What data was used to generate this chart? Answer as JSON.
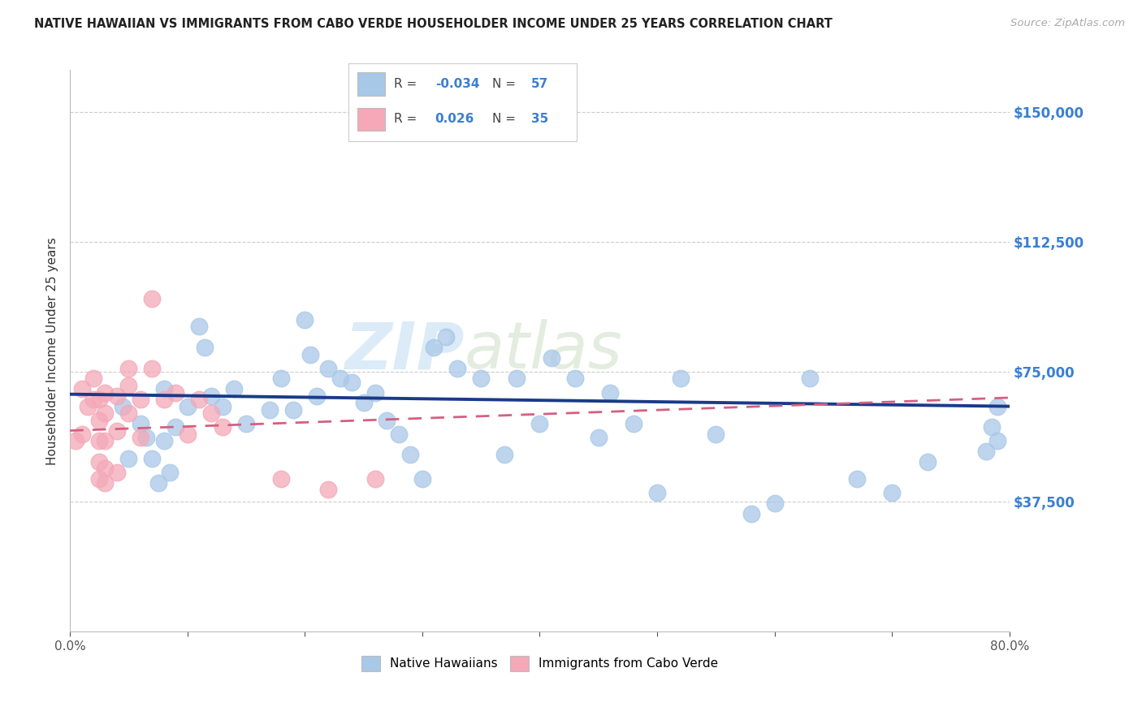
{
  "title": "NATIVE HAWAIIAN VS IMMIGRANTS FROM CABO VERDE HOUSEHOLDER INCOME UNDER 25 YEARS CORRELATION CHART",
  "source": "Source: ZipAtlas.com",
  "ylabel": "Householder Income Under 25 years",
  "xlim": [
    0,
    0.8
  ],
  "ylim": [
    0,
    162000
  ],
  "yticks": [
    0,
    37500,
    75000,
    112500,
    150000
  ],
  "ytick_labels": [
    "",
    "$37,500",
    "$75,000",
    "$112,500",
    "$150,000"
  ],
  "xticks": [
    0.0,
    0.1,
    0.2,
    0.3,
    0.4,
    0.5,
    0.6,
    0.7,
    0.8
  ],
  "xtick_labels": [
    "0.0%",
    "",
    "",
    "",
    "",
    "",
    "",
    "",
    "80.0%"
  ],
  "blue_color": "#a8c8e8",
  "pink_color": "#f4a8b8",
  "blue_line_color": "#1a3a8a",
  "pink_line_color": "#d46080",
  "blue_line_x0": 0.0,
  "blue_line_y0": 68500,
  "blue_line_x1": 0.8,
  "blue_line_y1": 65000,
  "pink_line_x0": 0.0,
  "pink_line_y0": 58000,
  "pink_line_x1": 0.8,
  "pink_line_y1": 67500,
  "blue_scatter_x": [
    0.045,
    0.05,
    0.06,
    0.065,
    0.07,
    0.075,
    0.08,
    0.08,
    0.085,
    0.09,
    0.1,
    0.11,
    0.115,
    0.12,
    0.13,
    0.14,
    0.15,
    0.17,
    0.18,
    0.19,
    0.2,
    0.205,
    0.21,
    0.22,
    0.23,
    0.24,
    0.25,
    0.26,
    0.27,
    0.28,
    0.29,
    0.3,
    0.31,
    0.32,
    0.33,
    0.35,
    0.37,
    0.38,
    0.4,
    0.41,
    0.43,
    0.45,
    0.46,
    0.48,
    0.5,
    0.52,
    0.55,
    0.58,
    0.6,
    0.63,
    0.67,
    0.7,
    0.73,
    0.78,
    0.785,
    0.79,
    0.79
  ],
  "blue_scatter_y": [
    65000,
    50000,
    60000,
    56000,
    50000,
    43000,
    70000,
    55000,
    46000,
    59000,
    65000,
    88000,
    82000,
    68000,
    65000,
    70000,
    60000,
    64000,
    73000,
    64000,
    90000,
    80000,
    68000,
    76000,
    73000,
    72000,
    66000,
    69000,
    61000,
    57000,
    51000,
    44000,
    82000,
    85000,
    76000,
    73000,
    51000,
    73000,
    60000,
    79000,
    73000,
    56000,
    69000,
    60000,
    40000,
    73000,
    57000,
    34000,
    37000,
    73000,
    44000,
    40000,
    49000,
    52000,
    59000,
    65000,
    55000
  ],
  "pink_scatter_x": [
    0.005,
    0.01,
    0.01,
    0.015,
    0.02,
    0.02,
    0.025,
    0.025,
    0.025,
    0.025,
    0.025,
    0.03,
    0.03,
    0.03,
    0.03,
    0.03,
    0.04,
    0.04,
    0.04,
    0.05,
    0.05,
    0.05,
    0.06,
    0.06,
    0.07,
    0.07,
    0.08,
    0.09,
    0.1,
    0.11,
    0.12,
    0.13,
    0.18,
    0.22,
    0.26
  ],
  "pink_scatter_y": [
    55000,
    70000,
    57000,
    65000,
    73000,
    67000,
    67000,
    61000,
    55000,
    49000,
    44000,
    69000,
    63000,
    55000,
    47000,
    43000,
    68000,
    58000,
    46000,
    76000,
    71000,
    63000,
    67000,
    56000,
    96000,
    76000,
    67000,
    69000,
    57000,
    67000,
    63000,
    59000,
    44000,
    41000,
    44000
  ],
  "watermark_zip": "ZIP",
  "watermark_atlas": "atlas",
  "background_color": "#ffffff",
  "grid_color": "#cccccc"
}
